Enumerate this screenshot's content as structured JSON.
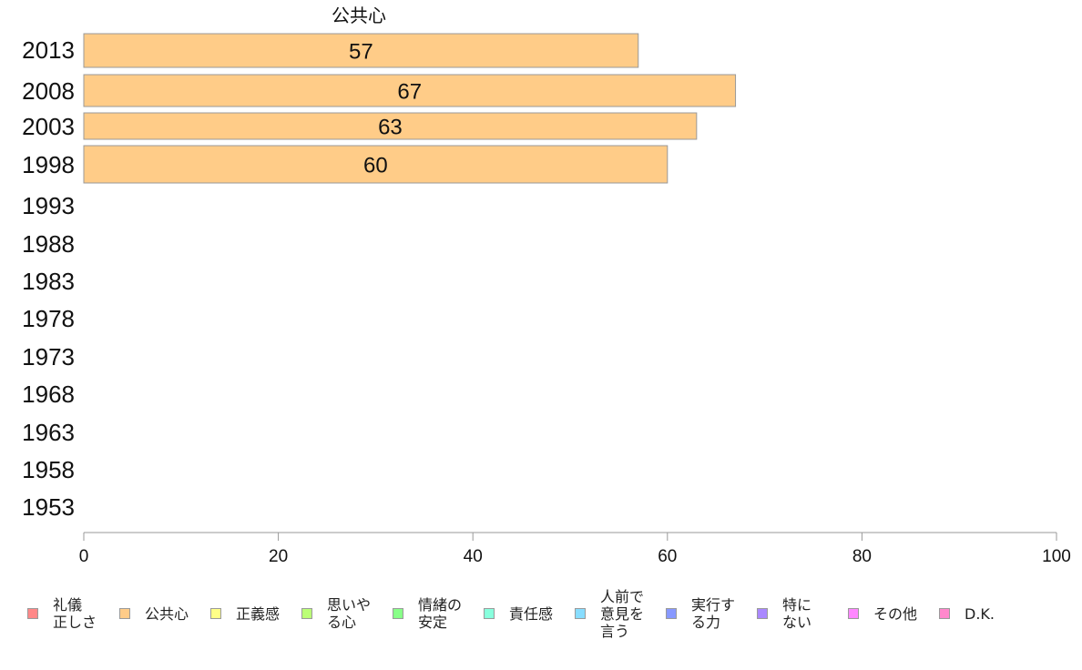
{
  "chart_data": {
    "type": "bar",
    "orientation": "horizontal",
    "title": "公共心",
    "categories": [
      "2013",
      "2008",
      "2003",
      "1998",
      "1993",
      "1988",
      "1983",
      "1978",
      "1973",
      "1968",
      "1963",
      "1958",
      "1953"
    ],
    "series": [
      {
        "name": "公共心",
        "color": "#ffcc88",
        "values": [
          57,
          67,
          63,
          60,
          null,
          null,
          null,
          null,
          null,
          null,
          null,
          null,
          null
        ]
      }
    ],
    "data_labels": [
      "57",
      "67",
      "63",
      "60"
    ],
    "xlim": [
      0,
      100
    ],
    "xticks": [
      "0",
      "20",
      "40",
      "60",
      "80",
      "100"
    ],
    "grid": false,
    "legend_position": "bottom"
  },
  "legend": [
    {
      "label": "礼儀\n正しさ",
      "color": "#ff8888"
    },
    {
      "label": "公共心",
      "color": "#ffcc88"
    },
    {
      "label": "正義感",
      "color": "#ffff88"
    },
    {
      "label": "思いや\nる心",
      "color": "#bbff77"
    },
    {
      "label": "情緒の\n安定",
      "color": "#88ff88"
    },
    {
      "label": "責任感",
      "color": "#88ffdd"
    },
    {
      "label": "人前で\n意見を\n言う",
      "color": "#88ddff"
    },
    {
      "label": "実行す\nる力",
      "color": "#8899ff"
    },
    {
      "label": "特に\nない",
      "color": "#aa88ff"
    },
    {
      "label": "その他",
      "color": "#ff88ff"
    },
    {
      "label": "D.K.",
      "color": "#ff88cc"
    }
  ]
}
